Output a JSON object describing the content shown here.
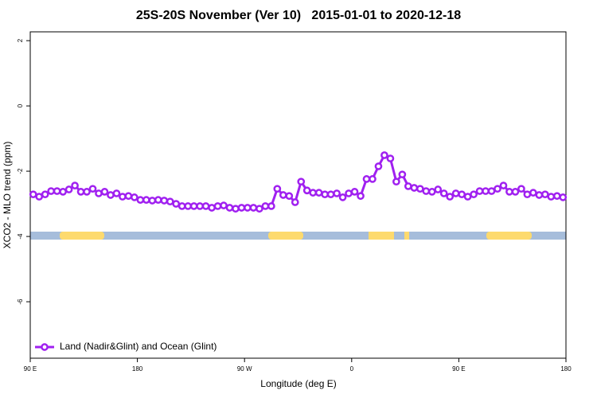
{
  "chart_data": {
    "type": "line",
    "title": "25S-20S November (Ver 10)   2015-01-01 to 2020-12-18",
    "x_label": "Longitude (deg E)",
    "y_label": "XCO2 - MLO trend (ppm)",
    "xlim": [
      90,
      540
    ],
    "ylim": [
      -7.73,
      2.27
    ],
    "xticks": [
      {
        "value": 90,
        "label": "90 E"
      },
      180,
      {
        "value": 270,
        "label": "90 W"
      },
      {
        "value": 360,
        "label": "0"
      },
      {
        "value": 450,
        "label": "90 E"
      },
      {
        "value": 540,
        "label": "180"
      }
    ],
    "yticks": [
      2,
      0,
      -2,
      -4,
      -6
    ],
    "legend": "bottom-left",
    "x": [
      92.5,
      97.5,
      102.5,
      107.5,
      112.5,
      117.5,
      122.5,
      127.5,
      132.5,
      137.5,
      142.5,
      147.5,
      152.5,
      157.5,
      162.5,
      167.5,
      172.5,
      177.5,
      182.5,
      187.5,
      192.5,
      197.5,
      202.5,
      207.5,
      212.5,
      217.5,
      222.5,
      227.5,
      232.5,
      237.5,
      242.5,
      247.5,
      252.5,
      257.5,
      262.5,
      267.5,
      272.5,
      277.5,
      282.5,
      287.5,
      292.5,
      297.5,
      302.5,
      307.5,
      312.5,
      317.5,
      322.5,
      327.5,
      332.5,
      337.5,
      342.5,
      347.5,
      352.5,
      357.5,
      362.5,
      367.5,
      372.5,
      377.5,
      382.5,
      387.5,
      392.5,
      397.5,
      402.5,
      407.5,
      412.5,
      417.5,
      422.5,
      427.5,
      432.5,
      437.5,
      442.5,
      447.5,
      452.5,
      457.5,
      462.5,
      467.5,
      472.5,
      477.5,
      482.5,
      487.5,
      492.5,
      497.5,
      502.5,
      507.5,
      512.5,
      517.5,
      522.5,
      527.5,
      532.5,
      537.5
    ],
    "series": [
      {
        "name": "Land (Nadir&Glint) and Ocean (Glint)",
        "color": "#a020f0",
        "values": [
          -2.71,
          -2.78,
          -2.71,
          -2.61,
          -2.61,
          -2.63,
          -2.56,
          -2.44,
          -2.63,
          -2.63,
          -2.54,
          -2.68,
          -2.63,
          -2.73,
          -2.68,
          -2.78,
          -2.76,
          -2.8,
          -2.88,
          -2.88,
          -2.9,
          -2.88,
          -2.9,
          -2.93,
          -3.0,
          -3.07,
          -3.07,
          -3.07,
          -3.07,
          -3.07,
          -3.12,
          -3.07,
          -3.05,
          -3.12,
          -3.15,
          -3.12,
          -3.12,
          -3.12,
          -3.15,
          -3.07,
          -3.07,
          -2.54,
          -2.73,
          -2.76,
          -2.95,
          -2.32,
          -2.59,
          -2.66,
          -2.66,
          -2.71,
          -2.71,
          -2.68,
          -2.8,
          -2.68,
          -2.63,
          -2.76,
          -2.24,
          -2.24,
          -1.85,
          -1.51,
          -1.61,
          -2.32,
          -2.1,
          -2.46,
          -2.51,
          -2.54,
          -2.61,
          -2.63,
          -2.56,
          -2.68,
          -2.78,
          -2.68,
          -2.71,
          -2.78,
          -2.71,
          -2.61,
          -2.61,
          -2.61,
          -2.54,
          -2.44,
          -2.63,
          -2.63,
          -2.54,
          -2.71,
          -2.66,
          -2.73,
          -2.71,
          -2.78,
          -2.76,
          -2.8
        ]
      }
    ]
  }
}
